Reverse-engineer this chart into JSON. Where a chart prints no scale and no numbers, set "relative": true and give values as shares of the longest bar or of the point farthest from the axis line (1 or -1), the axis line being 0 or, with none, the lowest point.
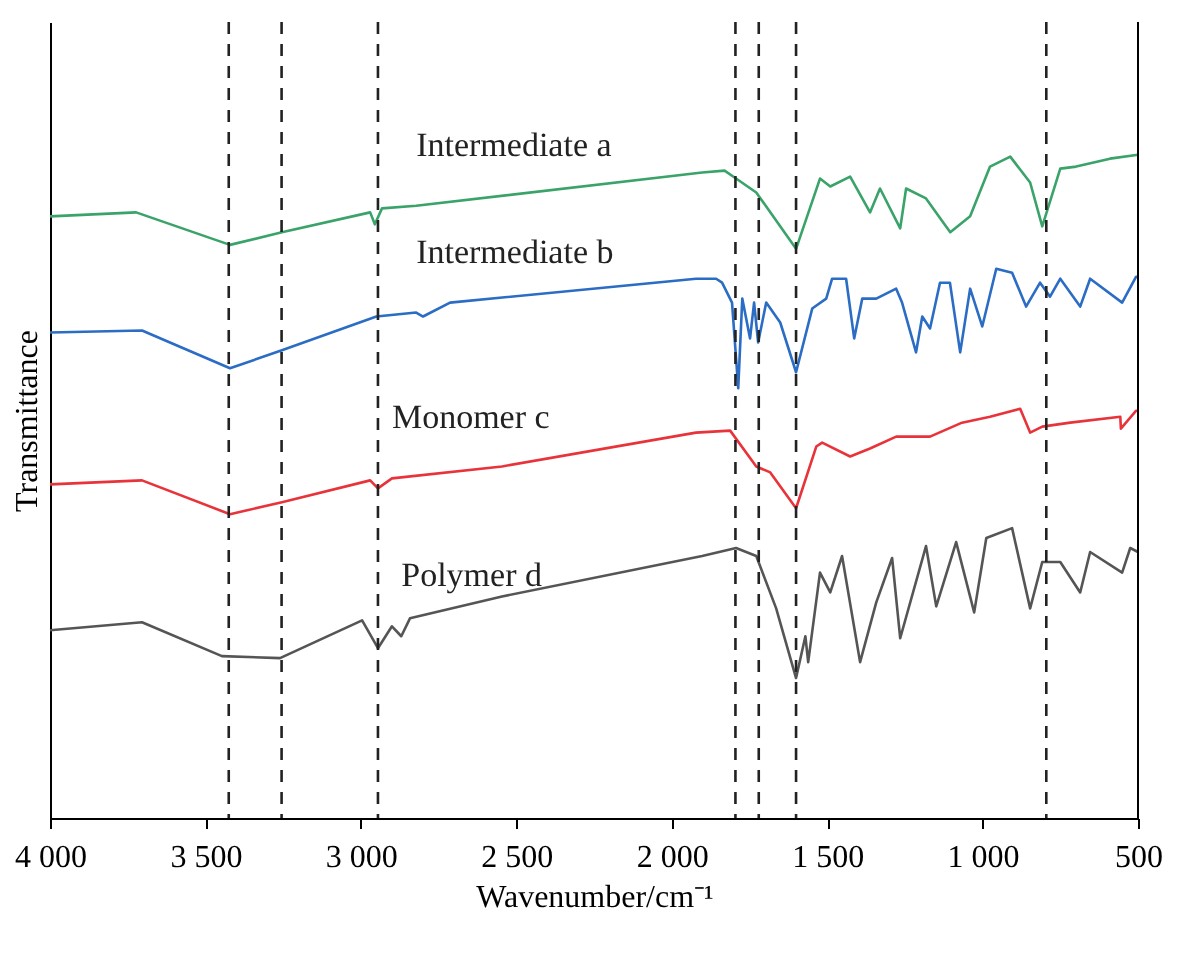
{
  "chart_data": {
    "type": "line",
    "relative": true,
    "xlabel": "Wavenumber/cm⁻¹",
    "ylabel": "Transmittance",
    "xlim": [
      4000,
      500
    ],
    "xticks": [
      {
        "value": 4000,
        "label": "4 000"
      },
      {
        "value": 3500,
        "label": "3 500"
      },
      {
        "value": 3000,
        "label": "3 000"
      },
      {
        "value": 2500,
        "label": "2 500"
      },
      {
        "value": 2000,
        "label": "2 000"
      },
      {
        "value": 1500,
        "label": "1 500"
      },
      {
        "value": 1000,
        "label": "1 000"
      },
      500
    ],
    "line_style": "solid",
    "series": [
      {
        "name": "Intermediate a",
        "color": "#3aa36a",
        "x": [
          4000,
          3723,
          3421,
          3254,
          2970,
          2955,
          2932,
          2822,
          1902,
          1830,
          1793,
          1728,
          1600,
          1523,
          1490,
          1426,
          1362,
          1330,
          1265,
          1246,
          1182,
          1104,
          1040,
          976,
          911,
          847,
          808,
          750,
          699,
          590,
          500
        ],
        "values": [
          0.907,
          0.913,
          0.864,
          0.883,
          0.913,
          0.895,
          0.919,
          0.923,
          0.973,
          0.976,
          0.964,
          0.943,
          0.858,
          0.964,
          0.952,
          0.967,
          0.913,
          0.949,
          0.889,
          0.949,
          0.934,
          0.883,
          0.907,
          0.982,
          0.997,
          0.958,
          0.892,
          0.979,
          0.982,
          0.994,
          1.0
        ]
      },
      {
        "name": "Intermediate b",
        "color": "#2b6cc4",
        "x": [
          4000,
          3704,
          3421,
          3254,
          2950,
          2822,
          2800,
          2713,
          1922,
          1857,
          1838,
          1806,
          1786,
          1773,
          1748,
          1735,
          1722,
          1696,
          1651,
          1600,
          1548,
          1503,
          1484,
          1439,
          1413,
          1387,
          1342,
          1278,
          1259,
          1214,
          1194,
          1169,
          1137,
          1105,
          1072,
          1040,
          1001,
          956,
          905,
          860,
          815,
          783,
          750,
          686,
          654,
          551,
          506,
          500
        ],
        "values": [
          0.732,
          0.735,
          0.678,
          0.705,
          0.756,
          0.762,
          0.756,
          0.777,
          0.813,
          0.813,
          0.807,
          0.777,
          0.648,
          0.783,
          0.723,
          0.777,
          0.717,
          0.777,
          0.747,
          0.672,
          0.768,
          0.783,
          0.813,
          0.813,
          0.723,
          0.783,
          0.783,
          0.798,
          0.777,
          0.702,
          0.756,
          0.738,
          0.807,
          0.807,
          0.702,
          0.798,
          0.741,
          0.828,
          0.822,
          0.771,
          0.807,
          0.786,
          0.813,
          0.771,
          0.813,
          0.777,
          0.816,
          0.816
        ]
      },
      {
        "name": "Monomer c",
        "color": "#e8333a",
        "x": [
          4000,
          3704,
          3421,
          3254,
          2970,
          2945,
          2900,
          2546,
          1922,
          1812,
          1728,
          1683,
          1600,
          1535,
          1516,
          1426,
          1362,
          1278,
          1169,
          1066,
          976,
          879,
          847,
          808,
          718,
          557,
          555,
          506,
          500
        ],
        "values": [
          0.503,
          0.509,
          0.458,
          0.476,
          0.509,
          0.497,
          0.512,
          0.53,
          0.581,
          0.584,
          0.53,
          0.521,
          0.467,
          0.56,
          0.566,
          0.545,
          0.557,
          0.575,
          0.575,
          0.596,
          0.605,
          0.617,
          0.581,
          0.59,
          0.596,
          0.605,
          0.587,
          0.614,
          0.614
        ]
      },
      {
        "name": "Polymer d",
        "color": "#555555",
        "x": [
          4000,
          3704,
          3447,
          3260,
          2996,
          2945,
          2900,
          2870,
          2842,
          2546,
          1902,
          1793,
          1728,
          1664,
          1600,
          1570,
          1561,
          1523,
          1490,
          1452,
          1394,
          1342,
          1291,
          1265,
          1182,
          1149,
          1085,
          1027,
          988,
          905,
          847,
          808,
          750,
          686,
          654,
          551,
          525,
          500
        ],
        "values": [
          0.283,
          0.295,
          0.244,
          0.241,
          0.298,
          0.256,
          0.289,
          0.274,
          0.301,
          0.334,
          0.395,
          0.407,
          0.395,
          0.316,
          0.211,
          0.274,
          0.235,
          0.37,
          0.34,
          0.395,
          0.235,
          0.325,
          0.392,
          0.271,
          0.41,
          0.319,
          0.416,
          0.31,
          0.422,
          0.437,
          0.316,
          0.386,
          0.386,
          0.34,
          0.401,
          0.37,
          0.407,
          0.401
        ]
      }
    ],
    "ref_lines": [
      {
        "axis": "x",
        "value": 3425,
        "color": "#222222",
        "line_style": "dashed"
      },
      {
        "axis": "x",
        "value": 3255,
        "color": "#222222",
        "line_style": "dashed"
      },
      {
        "axis": "x",
        "value": 2945,
        "color": "#222222",
        "line_style": "dashed"
      },
      {
        "axis": "x",
        "value": 1795,
        "color": "#222222",
        "line_style": "dashed"
      },
      {
        "axis": "x",
        "value": 1720,
        "color": "#222222",
        "line_style": "dashed"
      },
      {
        "axis": "x",
        "value": 1600,
        "color": "#222222",
        "line_style": "dashed"
      },
      {
        "axis": "x",
        "value": 795,
        "color": "#222222",
        "line_style": "dashed"
      }
    ]
  }
}
